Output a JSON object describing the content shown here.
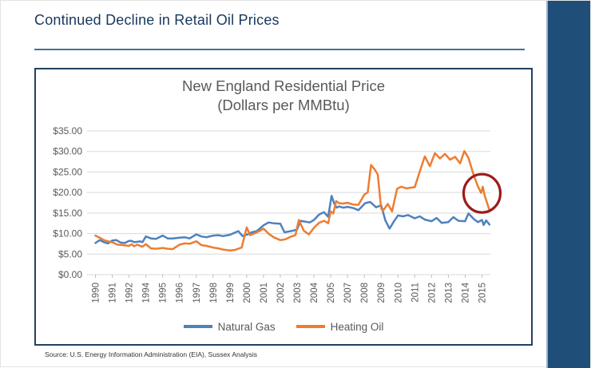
{
  "header": {
    "title": "Continued Decline in Retail Oil Prices"
  },
  "footer": {
    "source": "Source: U.S. Energy Information Administration (EIA), Sussex Analysis"
  },
  "colors": {
    "accent_band": "#1F4E79",
    "title_text": "#17375D",
    "rule": "#41719C",
    "chart_border": "#22415E",
    "grid": "#D9D9D9",
    "axis_text": "#595959",
    "annotation": "#9B1C1C"
  },
  "chart_data": {
    "type": "line",
    "title": "New England Residential Price",
    "subtitle": "(Dollars per MMBtu)",
    "xlabel": "",
    "ylabel": "",
    "ylim": [
      0,
      35
    ],
    "grid": true,
    "legend_position": "bottom",
    "y_tick_labels": [
      "$0.00",
      "$5.00",
      "$10.00",
      "$15.00",
      "$20.00",
      "$25.00",
      "$30.00",
      "$35.00"
    ],
    "x_tick_labels": [
      "1990",
      "1991",
      "1992",
      "1994",
      "1995",
      "1996",
      "1997",
      "1998",
      "1999",
      "2000",
      "2001",
      "2002",
      "2003",
      "2004",
      "2005",
      "2007",
      "2008",
      "2009",
      "2010",
      "2011",
      "2012",
      "2013",
      "2014",
      "2015"
    ],
    "series": [
      {
        "name": "Natural Gas",
        "color": "#4F81BD",
        "points": [
          [
            1990.0,
            7.7
          ],
          [
            1990.25,
            8.4
          ],
          [
            1990.5,
            7.9
          ],
          [
            1990.75,
            7.6
          ],
          [
            1991.0,
            8.3
          ],
          [
            1991.25,
            8.4
          ],
          [
            1991.5,
            7.8
          ],
          [
            1991.75,
            7.7
          ],
          [
            1992.0,
            8.2
          ],
          [
            1992.3,
            8.2
          ],
          [
            1992.6,
            7.9
          ],
          [
            1993.0,
            8.0
          ],
          [
            1993.3,
            8.1
          ],
          [
            1993.6,
            7.9
          ],
          [
            1994.0,
            9.3
          ],
          [
            1994.3,
            8.8
          ],
          [
            1994.6,
            8.7
          ],
          [
            1995.0,
            9.5
          ],
          [
            1995.3,
            8.8
          ],
          [
            1995.6,
            8.8
          ],
          [
            1996.0,
            9.0
          ],
          [
            1996.3,
            9.1
          ],
          [
            1996.6,
            8.8
          ],
          [
            1997.0,
            9.8
          ],
          [
            1997.3,
            9.3
          ],
          [
            1997.6,
            9.1
          ],
          [
            1998.0,
            9.5
          ],
          [
            1998.3,
            9.6
          ],
          [
            1998.6,
            9.4
          ],
          [
            1999.0,
            9.7
          ],
          [
            1999.5,
            10.6
          ],
          [
            1999.75,
            9.4
          ],
          [
            2000.0,
            9.7
          ],
          [
            2000.3,
            10.3
          ],
          [
            2000.6,
            10.6
          ],
          [
            2001.0,
            12.0
          ],
          [
            2001.3,
            12.7
          ],
          [
            2001.6,
            12.5
          ],
          [
            2002.0,
            12.4
          ],
          [
            2002.25,
            10.3
          ],
          [
            2002.5,
            10.5
          ],
          [
            2002.75,
            10.7
          ],
          [
            2003.0,
            11.0
          ],
          [
            2003.2,
            13.1
          ],
          [
            2003.5,
            12.9
          ],
          [
            2003.75,
            12.7
          ],
          [
            2004.0,
            13.3
          ],
          [
            2004.3,
            14.6
          ],
          [
            2004.6,
            15.2
          ],
          [
            2004.85,
            14.1
          ],
          [
            2005.1,
            19.2
          ],
          [
            2005.4,
            17.4
          ],
          [
            2005.7,
            16.3
          ],
          [
            2006.0,
            16.6
          ],
          [
            2006.5,
            16.3
          ],
          [
            2007.0,
            16.5
          ],
          [
            2007.35,
            16.2
          ],
          [
            2007.65,
            15.7
          ],
          [
            2008.05,
            17.4
          ],
          [
            2008.35,
            17.7
          ],
          [
            2008.7,
            16.4
          ],
          [
            2009.0,
            16.9
          ],
          [
            2009.25,
            13.2
          ],
          [
            2009.5,
            11.2
          ],
          [
            2009.75,
            12.9
          ],
          [
            2010.0,
            14.4
          ],
          [
            2010.3,
            14.2
          ],
          [
            2010.6,
            14.5
          ],
          [
            2011.0,
            13.7
          ],
          [
            2011.3,
            14.2
          ],
          [
            2011.6,
            13.4
          ],
          [
            2012.0,
            13.0
          ],
          [
            2012.3,
            13.8
          ],
          [
            2012.6,
            12.6
          ],
          [
            2013.0,
            12.8
          ],
          [
            2013.3,
            14.0
          ],
          [
            2013.6,
            13.1
          ],
          [
            2014.0,
            13.0
          ],
          [
            2014.2,
            14.9
          ],
          [
            2014.5,
            13.6
          ],
          [
            2014.75,
            12.8
          ],
          [
            2015.0,
            13.3
          ],
          [
            2015.1,
            12.1
          ],
          [
            2015.25,
            13.2
          ],
          [
            2015.45,
            12.2
          ]
        ]
      },
      {
        "name": "Heating Oil",
        "color": "#ED7D31",
        "points": [
          [
            1990.0,
            9.5
          ],
          [
            1990.25,
            9.0
          ],
          [
            1990.5,
            8.4
          ],
          [
            1990.75,
            8.1
          ],
          [
            1991.0,
            7.9
          ],
          [
            1991.3,
            7.3
          ],
          [
            1991.6,
            7.2
          ],
          [
            1992.0,
            7.0
          ],
          [
            1992.3,
            7.4
          ],
          [
            1992.6,
            6.9
          ],
          [
            1993.0,
            7.3
          ],
          [
            1993.3,
            7.0
          ],
          [
            1993.6,
            6.8
          ],
          [
            1994.0,
            7.4
          ],
          [
            1994.3,
            6.4
          ],
          [
            1994.6,
            6.3
          ],
          [
            1995.0,
            6.5
          ],
          [
            1995.3,
            6.3
          ],
          [
            1995.6,
            6.2
          ],
          [
            1996.0,
            7.3
          ],
          [
            1996.3,
            7.6
          ],
          [
            1996.6,
            7.5
          ],
          [
            1997.0,
            8.1
          ],
          [
            1997.3,
            7.2
          ],
          [
            1997.6,
            7.0
          ],
          [
            1998.0,
            6.6
          ],
          [
            1998.3,
            6.4
          ],
          [
            1998.6,
            6.1
          ],
          [
            1999.0,
            5.9
          ],
          [
            1999.3,
            6.0
          ],
          [
            1999.7,
            6.6
          ],
          [
            2000.0,
            11.5
          ],
          [
            2000.2,
            9.6
          ],
          [
            2000.5,
            10.1
          ],
          [
            2000.75,
            10.6
          ],
          [
            2001.0,
            11.2
          ],
          [
            2001.3,
            10.0
          ],
          [
            2001.6,
            9.1
          ],
          [
            2002.0,
            8.4
          ],
          [
            2002.3,
            8.6
          ],
          [
            2002.6,
            9.2
          ],
          [
            2002.9,
            9.6
          ],
          [
            2003.1,
            13.3
          ],
          [
            2003.4,
            10.7
          ],
          [
            2003.7,
            9.8
          ],
          [
            2004.0,
            11.4
          ],
          [
            2004.3,
            12.6
          ],
          [
            2004.6,
            13.1
          ],
          [
            2004.85,
            12.5
          ],
          [
            2005.0,
            15.4
          ],
          [
            2005.3,
            14.9
          ],
          [
            2005.65,
            17.9
          ],
          [
            2006.0,
            17.4
          ],
          [
            2006.5,
            17.3
          ],
          [
            2007.0,
            17.5
          ],
          [
            2007.3,
            17.1
          ],
          [
            2007.65,
            17.0
          ],
          [
            2008.0,
            19.5
          ],
          [
            2008.2,
            20.0
          ],
          [
            2008.4,
            26.7
          ],
          [
            2008.6,
            25.7
          ],
          [
            2008.8,
            24.4
          ],
          [
            2009.0,
            16.2
          ],
          [
            2009.1,
            15.5
          ],
          [
            2009.4,
            17.2
          ],
          [
            2009.65,
            15.4
          ],
          [
            2009.95,
            20.9
          ],
          [
            2010.2,
            21.4
          ],
          [
            2010.5,
            21.0
          ],
          [
            2010.8,
            21.2
          ],
          [
            2011.0,
            21.3
          ],
          [
            2011.3,
            25.1
          ],
          [
            2011.6,
            28.8
          ],
          [
            2011.9,
            26.4
          ],
          [
            2012.2,
            29.6
          ],
          [
            2012.5,
            28.3
          ],
          [
            2012.8,
            29.4
          ],
          [
            2013.1,
            28.0
          ],
          [
            2013.4,
            28.7
          ],
          [
            2013.7,
            27.1
          ],
          [
            2013.95,
            30.1
          ],
          [
            2014.2,
            28.4
          ],
          [
            2014.5,
            24.3
          ],
          [
            2014.75,
            21.6
          ],
          [
            2014.95,
            19.9
          ],
          [
            2015.05,
            21.4
          ],
          [
            2015.15,
            19.4
          ],
          [
            2015.45,
            15.7
          ]
        ]
      }
    ],
    "annotation": {
      "shape": "ellipse",
      "x_year": 2015.0,
      "value": 19.8,
      "color": "#9B1C1C"
    }
  }
}
